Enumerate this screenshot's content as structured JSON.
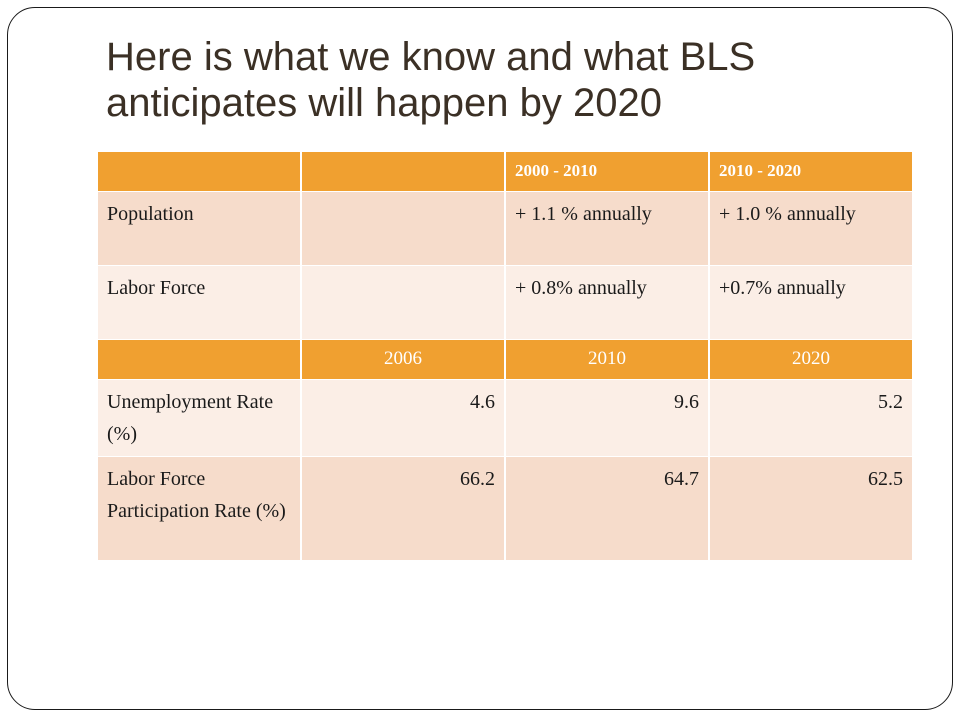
{
  "slide": {
    "title": "Here is what we know and what BLS anticipates will happen by 2020"
  },
  "table": {
    "header1": [
      "",
      "",
      "2000 - 2010",
      "2010 - 2020"
    ],
    "growth_rows": [
      {
        "label": "Population",
        "c2": "",
        "c3": "+ 1.1 % annually",
        "c4": "+ 1.0 % annually"
      },
      {
        "label": "Labor Force",
        "c2": "",
        "c3": "+ 0.8% annually",
        "c4": "+0.7% annually"
      }
    ],
    "header2": [
      "",
      "2006",
      "2010",
      "2020"
    ],
    "rate_rows": [
      {
        "label": "Unemployment Rate (%)",
        "v2006": "4.6",
        "v2010": "9.6",
        "v2020": "5.2"
      },
      {
        "label": "Labor Force Participation Rate (%)",
        "v2006": "66.2",
        "v2010": "64.7",
        "v2020": "62.5"
      }
    ]
  },
  "colors": {
    "header_orange": "#f0a030",
    "row_dark": "#f6dccb",
    "row_light": "#fbeee6",
    "title_text": "#3b3025"
  }
}
